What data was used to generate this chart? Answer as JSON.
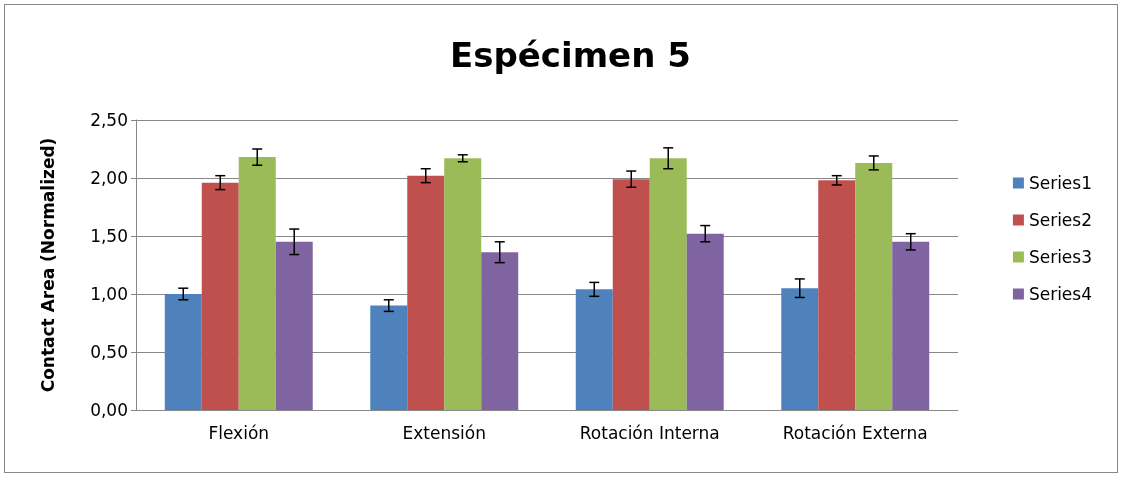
{
  "chart_data": {
    "type": "bar",
    "title": "Espécimen 5",
    "ylabel": "Contact Area (Normalized)",
    "categories": [
      "Flexión",
      "Extensión",
      "Rotación Interna",
      "Rotación Externa"
    ],
    "series": [
      {
        "name": "Series1",
        "color": "#4f81bd",
        "values": [
          1.0,
          0.9,
          1.04,
          1.05
        ],
        "errors": [
          0.05,
          0.05,
          0.06,
          0.08
        ]
      },
      {
        "name": "Series2",
        "color": "#c0504d",
        "values": [
          1.96,
          2.02,
          1.99,
          1.98
        ],
        "errors": [
          0.06,
          0.06,
          0.07,
          0.04
        ]
      },
      {
        "name": "Series3",
        "color": "#9bbb59",
        "values": [
          2.18,
          2.17,
          2.17,
          2.13
        ],
        "errors": [
          0.07,
          0.03,
          0.09,
          0.06
        ]
      },
      {
        "name": "Series4",
        "color": "#8064a2",
        "values": [
          1.45,
          1.36,
          1.52,
          1.45
        ],
        "errors": [
          0.11,
          0.09,
          0.07,
          0.07
        ]
      }
    ],
    "ylim": [
      0,
      2.5
    ],
    "yticks": [
      {
        "value": 0,
        "label": "0,00"
      },
      {
        "value": 0.5,
        "label": "0,50"
      },
      {
        "value": 1,
        "label": "1,00"
      },
      {
        "value": 1.5,
        "label": "1,50"
      },
      {
        "value": 2,
        "label": "2,00"
      },
      {
        "value": 2.5,
        "label": "2,50"
      }
    ],
    "grid": "y",
    "legend": "right"
  }
}
